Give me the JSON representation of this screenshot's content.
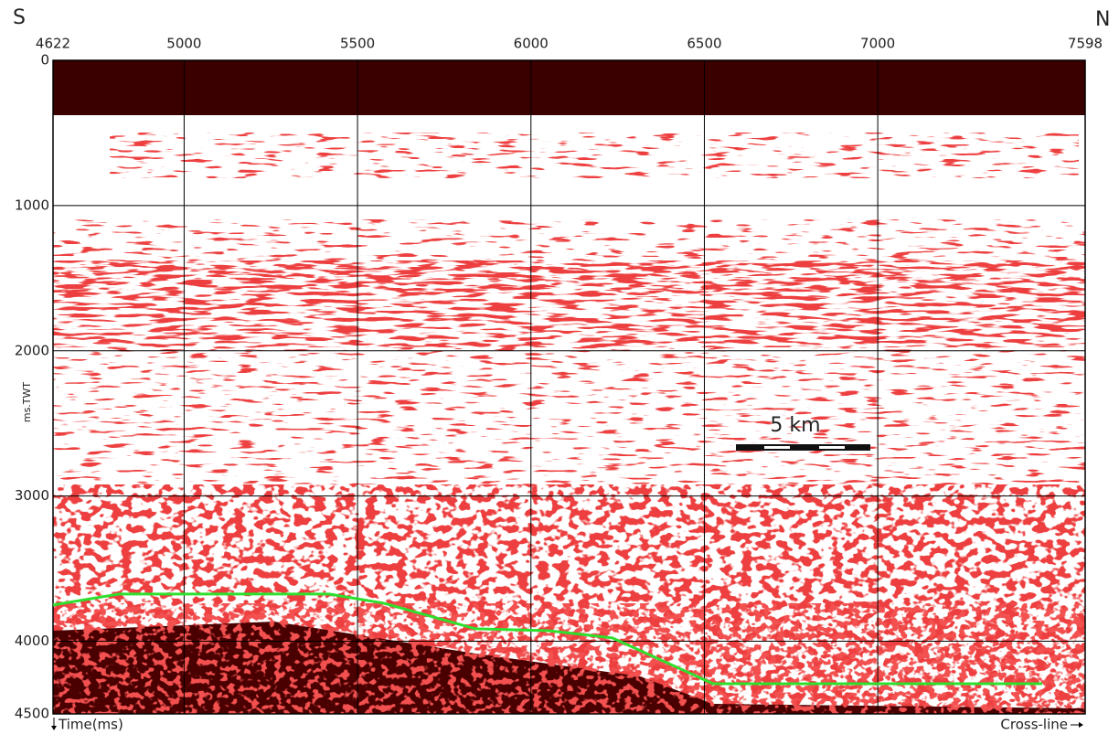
{
  "chart_data": {
    "type": "line",
    "left_end_label": "S",
    "right_end_label": "N",
    "x_label": "Cross-line",
    "y_label": "ms.TWT",
    "y_axis_label": "Time(ms)",
    "scale_bar_label": "5 km",
    "x": [
      4622,
      4812,
      5418,
      5576,
      5840,
      6051,
      6235,
      6525,
      7474
    ],
    "series": [
      {
        "color": "#2ee02e",
        "values": [
          3750,
          3675,
          3675,
          3738,
          3914,
          3927,
          3977,
          4292,
          4292
        ]
      }
    ],
    "xlim": [
      4622,
      7598
    ],
    "xticks": [
      4622,
      5000,
      5500,
      6000,
      6500,
      7000,
      7598
    ],
    "ylim": [
      0,
      4500
    ],
    "yticks": [
      0,
      1000,
      2000,
      3000,
      4000,
      4500
    ],
    "y_inverted": true,
    "grid": true
  }
}
